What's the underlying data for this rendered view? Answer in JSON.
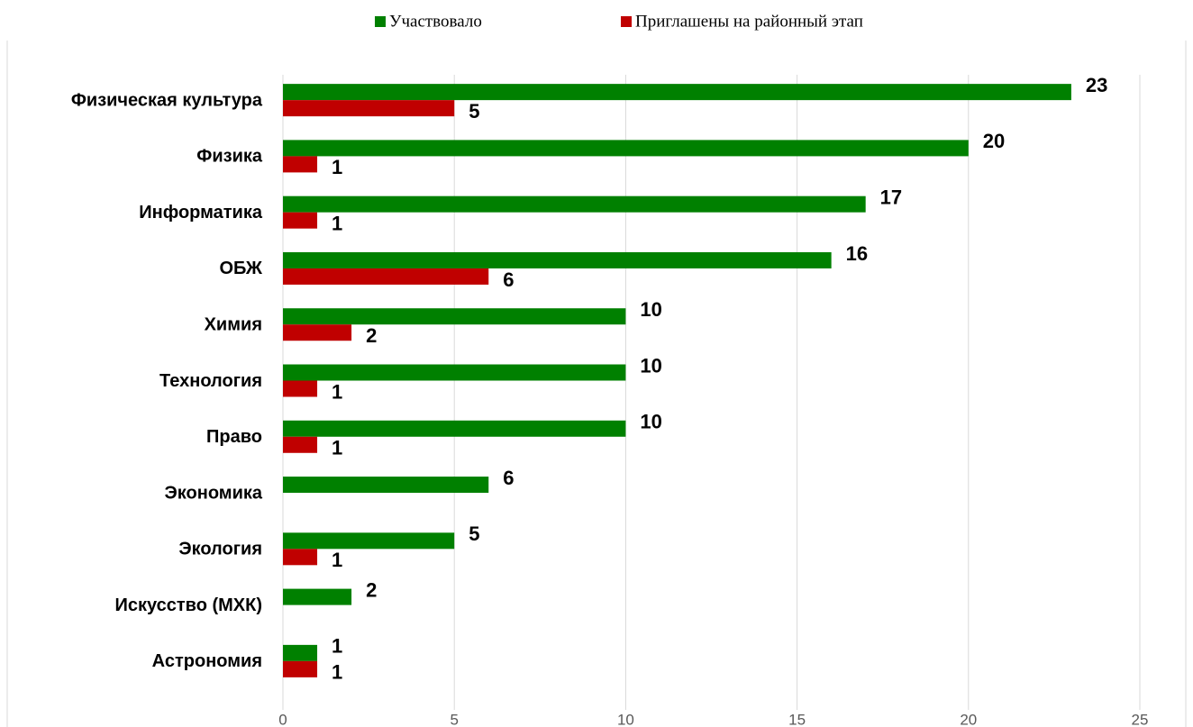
{
  "chart_data": {
    "type": "bar",
    "orientation": "horizontal",
    "categories": [
      "Физическая культура",
      "Физика",
      "Информатика",
      "ОБЖ",
      "Химия",
      "Технология",
      "Право",
      "Экономика",
      "Экология",
      "Искусство (МХК)",
      "Астрономия"
    ],
    "series": [
      {
        "name": "Участвовало",
        "color": "#008000",
        "values": [
          23,
          20,
          17,
          16,
          10,
          10,
          10,
          6,
          5,
          2,
          1
        ]
      },
      {
        "name": "Приглашены на районный этап",
        "color": "#c00000",
        "values": [
          5,
          1,
          1,
          6,
          2,
          1,
          1,
          null,
          1,
          null,
          1
        ]
      }
    ],
    "xlim": [
      0,
      25
    ],
    "xticks": [
      0,
      5,
      10,
      15,
      20,
      25
    ],
    "grid": true,
    "legend": "top"
  }
}
